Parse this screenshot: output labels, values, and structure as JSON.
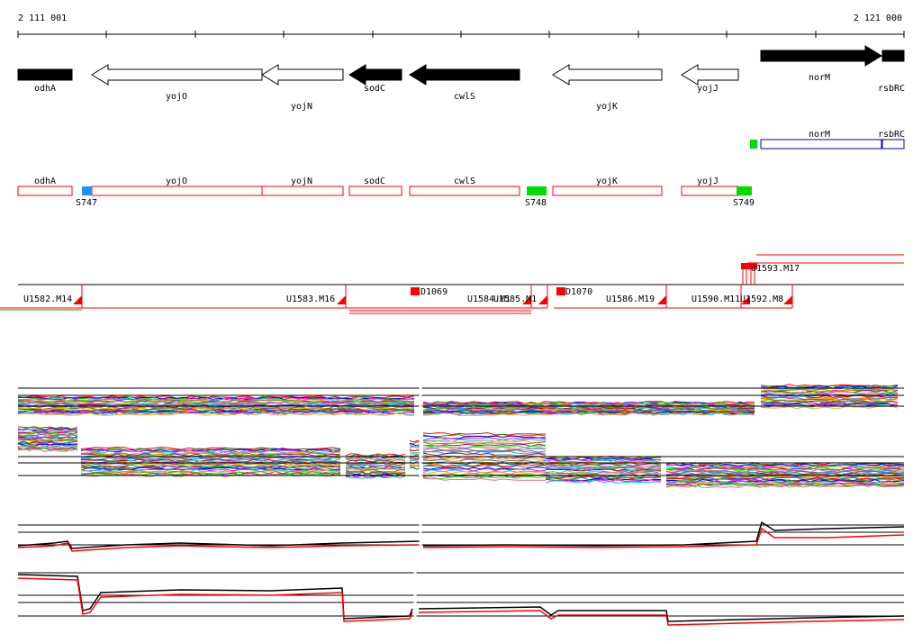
{
  "coordinates": {
    "start_label": "2 111 001",
    "end_label": "2 121 000"
  },
  "colors": {
    "gene_fill": "#000000",
    "gene_outline": "#000000",
    "annotation_outline": "#ff0000",
    "norm_outline": "#0000aa",
    "site_blue": "#1e90ff",
    "site_green": "#00dd00",
    "segment_red": "#ff0000",
    "profile_black": "#000000",
    "profile_red": "#ff0000"
  },
  "genes": [
    {
      "name": "odhA",
      "label": "odhA"
    },
    {
      "name": "yojO",
      "label": "yojO"
    },
    {
      "name": "yojN",
      "label": "yojN"
    },
    {
      "name": "sodC",
      "label": "sodC"
    },
    {
      "name": "cwlS",
      "label": "cwlS"
    },
    {
      "name": "yojK",
      "label": "yojK"
    },
    {
      "name": "yojJ",
      "label": "yojJ"
    },
    {
      "name": "norM",
      "label": "norM"
    },
    {
      "name": "rsbRC",
      "label": "rsbRC"
    }
  ],
  "annotation_boxes": [
    {
      "name": "odhA",
      "label": "odhA"
    },
    {
      "name": "yojO",
      "label": "yojO"
    },
    {
      "name": "yojN",
      "label": "yojN"
    },
    {
      "name": "sodC",
      "label": "sodC"
    },
    {
      "name": "cwlS",
      "label": "cwlS"
    },
    {
      "name": "yojK",
      "label": "yojK"
    },
    {
      "name": "yojJ",
      "label": "yojJ"
    }
  ],
  "blue_boxes": [
    {
      "name": "norM",
      "label": "norM"
    },
    {
      "name": "rsbRC",
      "label": "rsbRC"
    }
  ],
  "sites": [
    {
      "name": "S747",
      "label": "S747",
      "color": "#1e90ff"
    },
    {
      "name": "S748",
      "label": "S748",
      "color": "#00dd00"
    },
    {
      "name": "S749",
      "label": "S749",
      "color": "#00dd00"
    }
  ],
  "segments": [
    {
      "label": "U1582.M14"
    },
    {
      "label": "U1583.M16"
    },
    {
      "label": "D1069"
    },
    {
      "label": "U1584.M1"
    },
    {
      "label": "U1585.M1"
    },
    {
      "label": "D1070"
    },
    {
      "label": "U1586.M19"
    },
    {
      "label": "U1590.M11"
    },
    {
      "label": "U1592.M8"
    },
    {
      "label": "U1593.M17"
    }
  ]
}
